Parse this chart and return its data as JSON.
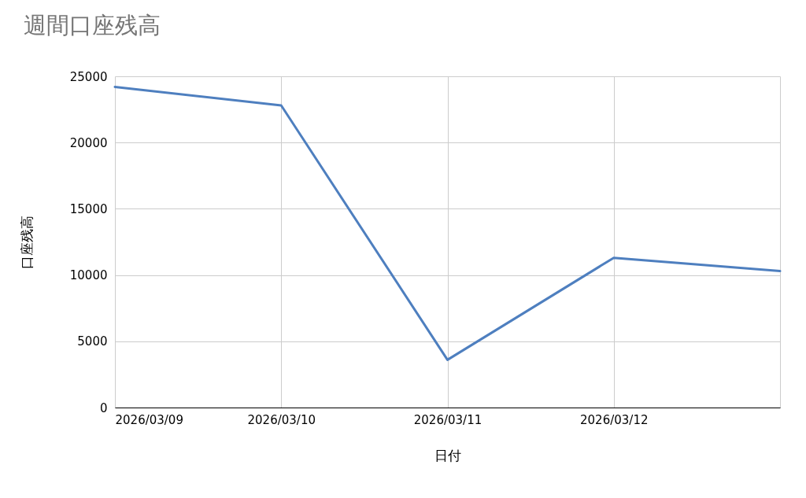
{
  "chart_data": {
    "type": "line",
    "title": "週間口座残高",
    "xlabel": "日付",
    "ylabel": "口座残高",
    "x": [
      "2026-03-09",
      "2026-03-10",
      "2026-03-11",
      "2026-03-12",
      "2026-03-13"
    ],
    "series": [
      {
        "color": "#4e7fbf",
        "values": [
          24200,
          22800,
          3600,
          11300,
          10300
        ]
      }
    ],
    "xlim": [
      "2026-03-09",
      "2026-03-13"
    ],
    "xticks": [
      {
        "value": "2026-03-09",
        "label": "2026/03/09"
      },
      {
        "value": "2026-03-10",
        "label": "2026/03/10"
      },
      {
        "value": "2026-03-11",
        "label": "2026/03/11"
      },
      {
        "value": "2026-03-12",
        "label": "2026/03/12"
      },
      {
        "value": "2026-03-13",
        "label": null
      }
    ],
    "ylim": [
      0,
      25000
    ],
    "yticks": [
      0,
      5000,
      10000,
      15000,
      20000,
      25000
    ],
    "grid": true
  }
}
